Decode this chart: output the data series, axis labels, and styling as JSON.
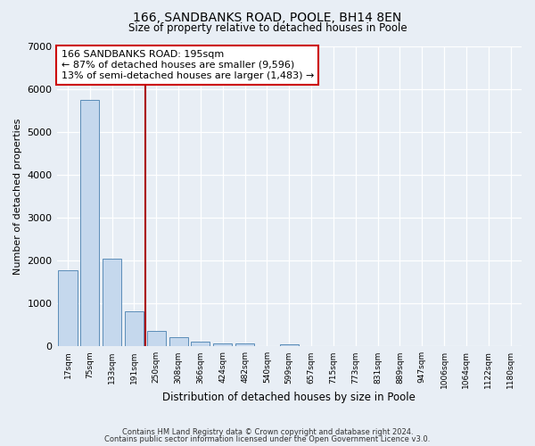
{
  "title": "166, SANDBANKS ROAD, POOLE, BH14 8EN",
  "subtitle": "Size of property relative to detached houses in Poole",
  "xlabel": "Distribution of detached houses by size in Poole",
  "ylabel": "Number of detached properties",
  "bin_labels": [
    "17sqm",
    "75sqm",
    "133sqm",
    "191sqm",
    "250sqm",
    "308sqm",
    "366sqm",
    "424sqm",
    "482sqm",
    "540sqm",
    "599sqm",
    "657sqm",
    "715sqm",
    "773sqm",
    "831sqm",
    "889sqm",
    "947sqm",
    "1006sqm",
    "1064sqm",
    "1122sqm",
    "1180sqm"
  ],
  "bar_heights": [
    1770,
    5750,
    2050,
    820,
    370,
    215,
    110,
    75,
    60,
    0,
    55,
    0,
    0,
    0,
    0,
    0,
    0,
    0,
    0,
    0,
    0
  ],
  "bar_color": "#c5d8ed",
  "bar_edge_color": "#5b8db8",
  "vline_x": 3.5,
  "vline_color": "#aa0000",
  "annotation_line1": "166 SANDBANKS ROAD: 195sqm",
  "annotation_line2": "← 87% of detached houses are smaller (9,596)",
  "annotation_line3": "13% of semi-detached houses are larger (1,483) →",
  "annotation_box_facecolor": "#ffffff",
  "annotation_box_edgecolor": "#cc0000",
  "ylim": [
    0,
    7000
  ],
  "yticks": [
    0,
    1000,
    2000,
    3000,
    4000,
    5000,
    6000,
    7000
  ],
  "footer1": "Contains HM Land Registry data © Crown copyright and database right 2024.",
  "footer2": "Contains public sector information licensed under the Open Government Licence v3.0.",
  "bg_color": "#e8eef5",
  "grid_color": "#ffffff"
}
